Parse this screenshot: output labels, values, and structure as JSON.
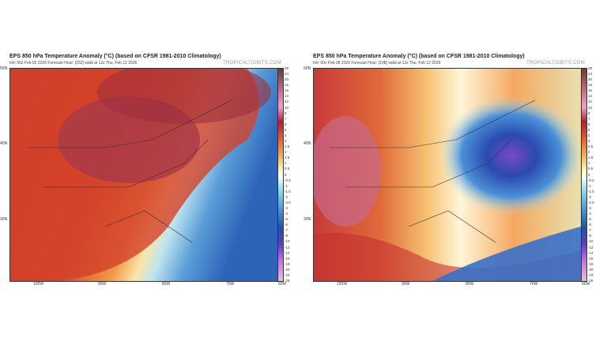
{
  "panels": [
    {
      "title": "EPS 850 hPa Temperature Anomaly (°C) (based on CFSR 1981-2010 Climatology)",
      "subtitle": "Init: 00z Feb 02 2026   Forecast Hour: [252]   valid at 12z Thu, Feb 12 2026",
      "brand": "TROPICALTIDBITS.COM"
    },
    {
      "title": "EPS 850 hPa Temperature Anomaly (°C) (based on CFSR 1981-2010 Climatology)",
      "subtitle": "Init: 00z Feb 08 2026   Forecast Hour: [108]   valid at 12z Thu, Feb 12 2026",
      "brand": "TROPICALTIDBITS.COM"
    }
  ],
  "colorbar_labels": [
    "28",
    "24",
    "20",
    "18",
    "16",
    "14",
    "12",
    "10",
    "8",
    "7",
    "6",
    "5",
    "4",
    "3",
    "2.5",
    "2",
    "1.5",
    "1",
    "0.5",
    "0",
    "-0.5",
    "-1",
    "-1.5",
    "-2",
    "-2.5",
    "-3",
    "-4",
    "-5",
    "-6",
    "-7",
    "-8",
    "-10",
    "-12",
    "-14",
    "-16",
    "-18",
    "-20",
    "-24",
    "-28"
  ],
  "lat_labels": [
    "50N",
    "40N",
    "30N"
  ],
  "lon_labels": [
    "100W",
    "90W",
    "80W",
    "70W",
    "60W"
  ]
}
